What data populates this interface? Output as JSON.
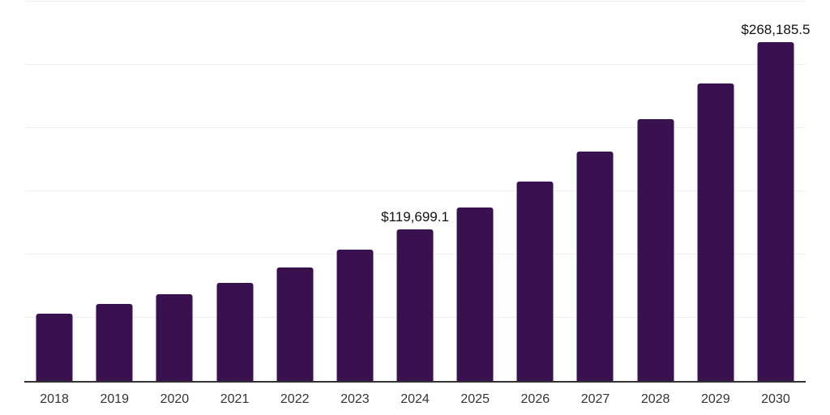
{
  "chart_data": {
    "type": "bar",
    "title": "",
    "xlabel": "",
    "ylabel": "",
    "categories": [
      "2018",
      "2019",
      "2020",
      "2021",
      "2022",
      "2023",
      "2024",
      "2025",
      "2026",
      "2027",
      "2028",
      "2029",
      "2030"
    ],
    "values": [
      53300,
      60700,
      68500,
      77700,
      89900,
      103900,
      119699.1,
      136900,
      157500,
      181400,
      207000,
      235600,
      268185.5
    ],
    "point_labels": [
      null,
      null,
      null,
      null,
      null,
      null,
      "$119,699.1",
      null,
      null,
      null,
      null,
      null,
      "$268,185.5"
    ],
    "ylim": [
      0,
      300000
    ],
    "gridline_step": 50000,
    "grid": "horizontal",
    "yaxis_tick_labels_visible": false,
    "legend": "none"
  },
  "colors": {
    "bar": "#38114e",
    "axis": "#333333",
    "grid": "#efefef",
    "tick_label": "#333333",
    "data_label": "#111111",
    "background": "#ffffff"
  }
}
